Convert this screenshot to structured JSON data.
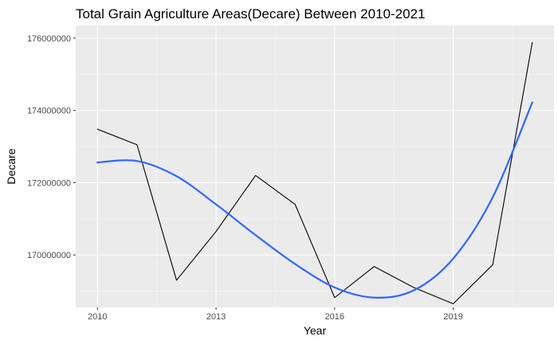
{
  "chart_data": {
    "type": "line",
    "title": "Total Grain Agriculture Areas(Decare) Between 2010-2021",
    "xlabel": "Year",
    "ylabel": "Decare",
    "x": [
      2010,
      2011,
      2012,
      2013,
      2014,
      2015,
      2016,
      2017,
      2018,
      2019,
      2020,
      2021
    ],
    "xlim": [
      2009.45,
      2021.55
    ],
    "ylim": [
      168550000,
      176350000
    ],
    "x_ticks": [
      2010,
      2013,
      2016,
      2019
    ],
    "x_tick_labels": [
      "2010",
      "2013",
      "2016",
      "2019"
    ],
    "y_ticks": [
      170000000,
      172000000,
      174000000,
      176000000
    ],
    "y_tick_labels": [
      "170000000",
      "172000000",
      "174000000",
      "176000000"
    ],
    "grid": true,
    "series": [
      {
        "values": [
          173480000,
          173050000,
          169300000,
          170650000,
          172200000,
          171400000,
          168820000,
          169680000,
          169100000,
          168650000,
          169730000,
          175880000
        ],
        "color": "#000000"
      },
      {
        "smooth": true,
        "values": [
          172560000,
          172600000,
          172180000,
          171400000,
          170550000,
          169750000,
          169100000,
          168820000,
          169020000,
          169900000,
          171600000,
          174220000
        ],
        "color": "#3366ff"
      }
    ]
  },
  "colors": {
    "panel_bg": "#ebebeb",
    "grid_major": "#ffffff",
    "grid_minor": "#f5f5f5",
    "tick": "#333333"
  }
}
